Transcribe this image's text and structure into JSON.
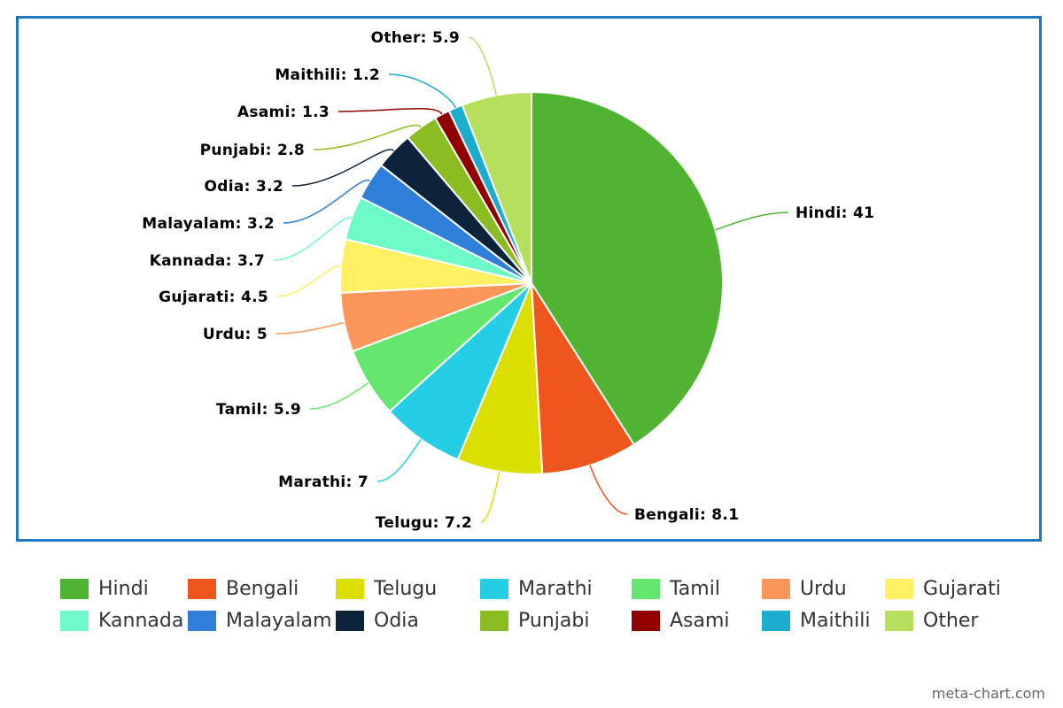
{
  "chart_data": {
    "type": "pie",
    "title": "",
    "slices": [
      {
        "label": "Hindi",
        "value": 41,
        "color": "#51b332",
        "display": "Hindi: 41"
      },
      {
        "label": "Bengali",
        "value": 8.1,
        "color": "#ee561e",
        "display": "Bengali: 8.1"
      },
      {
        "label": "Telugu",
        "value": 7.2,
        "color": "#dbdf00",
        "display": "Telugu: 7.2"
      },
      {
        "label": "Marathi",
        "value": 7,
        "color": "#25cde5",
        "display": "Marathi: 7"
      },
      {
        "label": "Tamil",
        "value": 5.9,
        "color": "#65e76f",
        "display": "Tamil: 5.9"
      },
      {
        "label": "Urdu",
        "value": 5,
        "color": "#fd9659",
        "display": "Urdu: 5"
      },
      {
        "label": "Gujarati",
        "value": 4.5,
        "color": "#fff063",
        "display": "Gujarati: 4.5"
      },
      {
        "label": "Kannada",
        "value": 3.7,
        "color": "#6df9c8",
        "display": "Kannada: 3.7"
      },
      {
        "label": "Malayalam",
        "value": 3.2,
        "color": "#2f7fd9",
        "display": "Malayalam: 3.2"
      },
      {
        "label": "Odia",
        "value": 3.2,
        "color": "#0d233a",
        "display": "Odia: 3.2"
      },
      {
        "label": "Punjabi",
        "value": 2.8,
        "color": "#8bbc21",
        "display": "Punjabi: 2.8"
      },
      {
        "label": "Asami",
        "value": 1.3,
        "color": "#910000",
        "display": "Asami: 1.3"
      },
      {
        "label": "Maithili",
        "value": 1.2,
        "color": "#1aadce",
        "display": "Maithili: 1.2"
      },
      {
        "label": "Other",
        "value": 5.9,
        "color": "#b5df5d",
        "display": "Other: 5.9"
      }
    ],
    "legend_placement": "bottom",
    "border_color": "#1f77c4"
  },
  "credit": "meta-chart.com"
}
